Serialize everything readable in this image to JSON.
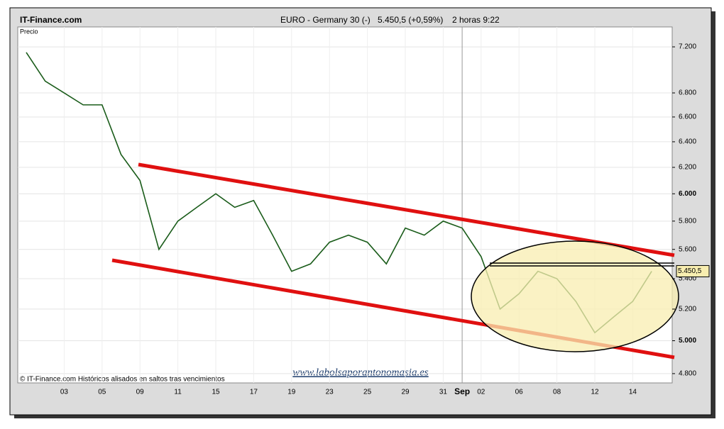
{
  "chart_data": {
    "type": "line",
    "site": "IT-Finance.com",
    "title": "EURO - Germany 30 (-)",
    "quote": "5.450,5 (+0,59%)",
    "timeframe": "2 horas  9:22",
    "y_label": "Precio",
    "footnote": "© IT-Finance.com Históricos alisados en saltos tras vencimientos",
    "watermark": "www.labolsaporantonomasia.es",
    "last_price": {
      "value": 5450.5,
      "label": "5.450,5"
    },
    "log_scale": true,
    "grid": true,
    "categories": [
      null,
      null,
      "03",
      null,
      "05",
      null,
      "09",
      null,
      "11",
      null,
      "15",
      null,
      "17",
      null,
      "19",
      null,
      "23",
      null,
      "25",
      null,
      "29",
      null,
      "31",
      "Sep",
      "02",
      null,
      "06",
      null,
      "08",
      null,
      "12",
      null,
      "14",
      null
    ],
    "series": [
      {
        "name": "Precio",
        "color": "#1a5c1a",
        "values": [
          7150,
          6900,
          6800,
          6700,
          6700,
          6300,
          6100,
          5600,
          5800,
          5900,
          6000,
          5900,
          5950,
          5700,
          5450,
          5500,
          5650,
          5700,
          5650,
          5500,
          5750,
          5700,
          5800,
          5750,
          5550,
          5200,
          5300,
          5450,
          5400,
          5250,
          5050,
          5150,
          5250,
          5450
        ]
      }
    ],
    "ylim": [
      4745,
      7380
    ],
    "yticks": [
      {
        "value": 4800,
        "label": "4.800"
      },
      {
        "value": 5000,
        "label": "5.000"
      },
      {
        "value": 5200,
        "label": "5.200"
      },
      {
        "value": 5400,
        "label": "5.400"
      },
      {
        "value": 5600,
        "label": "5.600"
      },
      {
        "value": 5800,
        "label": "5.800"
      },
      {
        "value": 6000,
        "label": "6.000"
      },
      {
        "value": 6200,
        "label": "6.200"
      },
      {
        "value": 6400,
        "label": "6.400"
      },
      {
        "value": 6600,
        "label": "6.600"
      },
      {
        "value": 6800,
        "label": "6.800"
      },
      {
        "value": 7200,
        "label": "7.200"
      }
    ]
  }
}
